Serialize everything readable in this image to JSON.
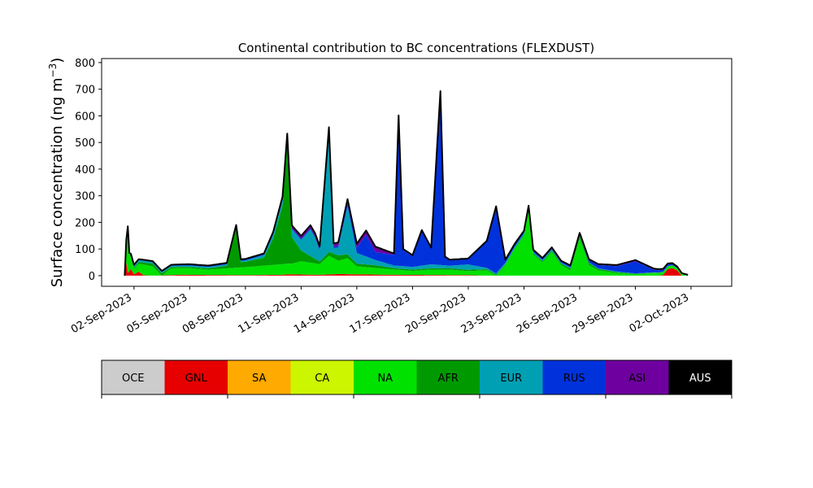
{
  "chart_data": [
    {
      "type": "area",
      "stacked": true,
      "title": "Continental contribution to BC concentrations (FLEXDUST)",
      "ylabel": "Surface concentration (ng m",
      "ylabel_sup": "−3",
      "ylabel_close": ")",
      "xlim": [
        "2023-09-01",
        "2023-10-02"
      ],
      "ylim": [
        -40,
        815
      ],
      "yticks": [
        0,
        100,
        200,
        300,
        400,
        500,
        600,
        700,
        800
      ],
      "xticks": [
        {
          "date": "2023-09-02",
          "label": "02-Sep-2023"
        },
        {
          "date": "2023-09-05",
          "label": "05-Sep-2023"
        },
        {
          "date": "2023-09-08",
          "label": "08-Sep-2023"
        },
        {
          "date": "2023-09-11",
          "label": "11-Sep-2023"
        },
        {
          "date": "2023-09-14",
          "label": "14-Sep-2023"
        },
        {
          "date": "2023-09-17",
          "label": "17-Sep-2023"
        },
        {
          "date": "2023-09-20",
          "label": "20-Sep-2023"
        },
        {
          "date": "2023-09-23",
          "label": "23-Sep-2023"
        },
        {
          "date": "2023-09-26",
          "label": "26-Sep-2023"
        },
        {
          "date": "2023-09-29",
          "label": "29-Sep-2023"
        },
        {
          "date": "2023-10-02",
          "label": "02-Oct-2023"
        }
      ],
      "total_line_color": "#000000",
      "series": [
        {
          "name": "GNL",
          "color": "#e60000",
          "points": [
            [
              "2023-09-01T12:00",
              0
            ],
            [
              "2023-09-01T14:00",
              50
            ],
            [
              "2023-09-01T16:00",
              10
            ],
            [
              "2023-09-01T20:00",
              25
            ],
            [
              "2023-09-02T00:00",
              5
            ],
            [
              "2023-09-02T06:00",
              15
            ],
            [
              "2023-09-02T12:00",
              2
            ],
            [
              "2023-09-03T00:00",
              0
            ],
            [
              "2023-09-04T12:00",
              3
            ],
            [
              "2023-09-08T00:00",
              2
            ],
            [
              "2023-09-10T00:00",
              3
            ],
            [
              "2023-09-10T06:00",
              5
            ],
            [
              "2023-09-12T00:00",
              3
            ],
            [
              "2023-09-13T00:00",
              6
            ],
            [
              "2023-09-14T00:00",
              5
            ],
            [
              "2023-09-16T00:00",
              3
            ],
            [
              "2023-09-20T00:00",
              2
            ],
            [
              "2023-09-21T00:00",
              0
            ],
            [
              "2023-09-30T06:00",
              0
            ],
            [
              "2023-09-30T12:00",
              3
            ],
            [
              "2023-09-30T18:00",
              25
            ],
            [
              "2023-10-01T00:00",
              28
            ],
            [
              "2023-10-01T06:00",
              20
            ],
            [
              "2023-10-01T12:00",
              0
            ],
            [
              "2023-10-01T20:00",
              0
            ]
          ]
        },
        {
          "name": "NA",
          "color": "#00e100",
          "points": [
            [
              "2023-09-01T12:00",
              0
            ],
            [
              "2023-09-01T14:00",
              80
            ],
            [
              "2023-09-01T16:00",
              170
            ],
            [
              "2023-09-01T18:00",
              60
            ],
            [
              "2023-09-02T00:00",
              20
            ],
            [
              "2023-09-02T12:00",
              40
            ],
            [
              "2023-09-03T00:00",
              35
            ],
            [
              "2023-09-03T12:00",
              0
            ],
            [
              "2023-09-04T00:00",
              25
            ],
            [
              "2023-09-05T00:00",
              25
            ],
            [
              "2023-09-06T00:00",
              20
            ],
            [
              "2023-09-07T00:00",
              25
            ],
            [
              "2023-09-08T00:00",
              30
            ],
            [
              "2023-09-09T00:00",
              35
            ],
            [
              "2023-09-10T00:00",
              40
            ],
            [
              "2023-09-10T12:00",
              40
            ],
            [
              "2023-09-11T00:00",
              50
            ],
            [
              "2023-09-12T00:00",
              40
            ],
            [
              "2023-09-12T12:00",
              70
            ],
            [
              "2023-09-13T00:00",
              50
            ],
            [
              "2023-09-13T12:00",
              60
            ],
            [
              "2023-09-14T00:00",
              30
            ],
            [
              "2023-09-15T00:00",
              25
            ],
            [
              "2023-09-16T00:00",
              20
            ],
            [
              "2023-09-17T00:00",
              15
            ],
            [
              "2023-09-18T00:00",
              20
            ],
            [
              "2023-09-19T00:00",
              20
            ],
            [
              "2023-09-20T00:00",
              15
            ],
            [
              "2023-09-21T00:00",
              20
            ],
            [
              "2023-09-21T12:00",
              0
            ],
            [
              "2023-09-22T00:00",
              40
            ],
            [
              "2023-09-22T12:00",
              100
            ],
            [
              "2023-09-23T00:00",
              150
            ],
            [
              "2023-09-23T06:00",
              245
            ],
            [
              "2023-09-23T12:00",
              80
            ],
            [
              "2023-09-24T00:00",
              50
            ],
            [
              "2023-09-24T12:00",
              90
            ],
            [
              "2023-09-25T00:00",
              40
            ],
            [
              "2023-09-25T12:00",
              20
            ],
            [
              "2023-09-26T00:00",
              140
            ],
            [
              "2023-09-26T12:00",
              40
            ],
            [
              "2023-09-27T00:00",
              20
            ],
            [
              "2023-09-28T00:00",
              10
            ],
            [
              "2023-09-29T00:00",
              5
            ],
            [
              "2023-09-30T00:00",
              10
            ],
            [
              "2023-10-01T00:00",
              10
            ],
            [
              "2023-10-01T20:00",
              3
            ]
          ]
        },
        {
          "name": "AFR",
          "color": "#009a00",
          "points": [
            [
              "2023-09-01T12:00",
              0
            ],
            [
              "2023-09-02T00:00",
              5
            ],
            [
              "2023-09-03T00:00",
              10
            ],
            [
              "2023-09-04T00:00",
              5
            ],
            [
              "2023-09-06T00:00",
              5
            ],
            [
              "2023-09-07T00:00",
              10
            ],
            [
              "2023-09-07T12:00",
              150
            ],
            [
              "2023-09-07T18:00",
              20
            ],
            [
              "2023-09-08T00:00",
              20
            ],
            [
              "2023-09-09T00:00",
              30
            ],
            [
              "2023-09-09T12:00",
              100
            ],
            [
              "2023-09-10T00:00",
              220
            ],
            [
              "2023-09-10T06:00",
              450
            ],
            [
              "2023-09-10T12:00",
              100
            ],
            [
              "2023-09-11T00:00",
              40
            ],
            [
              "2023-09-12T00:00",
              10
            ],
            [
              "2023-09-13T00:00",
              20
            ],
            [
              "2023-09-14T00:00",
              10
            ],
            [
              "2023-09-15T00:00",
              10
            ],
            [
              "2023-09-16T00:00",
              5
            ],
            [
              "2023-09-17T00:00",
              5
            ],
            [
              "2023-09-18T00:00",
              5
            ],
            [
              "2023-09-20T00:00",
              5
            ],
            [
              "2023-09-22T00:00",
              3
            ],
            [
              "2023-09-25T00:00",
              5
            ],
            [
              "2023-09-26T00:00",
              10
            ],
            [
              "2023-09-27T00:00",
              5
            ],
            [
              "2023-09-29T00:00",
              2
            ],
            [
              "2023-10-01T20:00",
              0
            ]
          ]
        },
        {
          "name": "EUR",
          "color": "#00a0b4",
          "points": [
            [
              "2023-09-01T12:00",
              0
            ],
            [
              "2023-09-02T00:00",
              10
            ],
            [
              "2023-09-04T00:00",
              5
            ],
            [
              "2023-09-07T00:00",
              5
            ],
            [
              "2023-09-08T00:00",
              5
            ],
            [
              "2023-09-09T00:00",
              10
            ],
            [
              "2023-09-10T00:00",
              20
            ],
            [
              "2023-09-11T00:00",
              40
            ],
            [
              "2023-09-11T12:00",
              100
            ],
            [
              "2023-09-11T18:00",
              80
            ],
            [
              "2023-09-12T00:00",
              40
            ],
            [
              "2023-09-12T12:00",
              450
            ],
            [
              "2023-09-12T18:00",
              20
            ],
            [
              "2023-09-13T00:00",
              30
            ],
            [
              "2023-09-13T12:00",
              180
            ],
            [
              "2023-09-14T00:00",
              40
            ],
            [
              "2023-09-15T00:00",
              20
            ],
            [
              "2023-09-16T00:00",
              10
            ],
            [
              "2023-09-17T00:00",
              10
            ],
            [
              "2023-09-18T00:00",
              15
            ],
            [
              "2023-09-19T00:00",
              10
            ],
            [
              "2023-09-20T00:00",
              20
            ],
            [
              "2023-09-21T00:00",
              5
            ],
            [
              "2023-09-22T00:00",
              5
            ],
            [
              "2023-09-24T00:00",
              5
            ],
            [
              "2023-09-26T00:00",
              3
            ],
            [
              "2023-09-28T00:00",
              2
            ],
            [
              "2023-10-01T20:00",
              0
            ]
          ]
        },
        {
          "name": "RUS",
          "color": "#0032dc",
          "points": [
            [
              "2023-09-01T12:00",
              0
            ],
            [
              "2023-09-05T00:00",
              3
            ],
            [
              "2023-09-10T00:00",
              3
            ],
            [
              "2023-09-13T00:00",
              5
            ],
            [
              "2023-09-14T00:00",
              20
            ],
            [
              "2023-09-14T12:00",
              80
            ],
            [
              "2023-09-15T00:00",
              30
            ],
            [
              "2023-09-16T00:00",
              40
            ],
            [
              "2023-09-16T06:00",
              560
            ],
            [
              "2023-09-16T12:00",
              60
            ],
            [
              "2023-09-17T00:00",
              40
            ],
            [
              "2023-09-17T12:00",
              130
            ],
            [
              "2023-09-18T00:00",
              60
            ],
            [
              "2023-09-18T12:00",
              650
            ],
            [
              "2023-09-18T18:00",
              30
            ],
            [
              "2023-09-19T00:00",
              20
            ],
            [
              "2023-09-20T00:00",
              20
            ],
            [
              "2023-09-20T12:00",
              60
            ],
            [
              "2023-09-21T00:00",
              100
            ],
            [
              "2023-09-21T12:00",
              250
            ],
            [
              "2023-09-22T00:00",
              10
            ],
            [
              "2023-09-24T00:00",
              5
            ],
            [
              "2023-09-26T00:00",
              5
            ],
            [
              "2023-09-28T00:00",
              20
            ],
            [
              "2023-09-29T00:00",
              45
            ],
            [
              "2023-09-30T00:00",
              10
            ],
            [
              "2023-10-01T00:00",
              5
            ],
            [
              "2023-10-01T20:00",
              0
            ]
          ]
        },
        {
          "name": "ASI",
          "color": "#6e00a0",
          "points": [
            [
              "2023-09-01T12:00",
              0
            ],
            [
              "2023-09-05T00:00",
              2
            ],
            [
              "2023-09-09T00:00",
              3
            ],
            [
              "2023-09-10T00:00",
              10
            ],
            [
              "2023-09-14T00:00",
              15
            ],
            [
              "2023-09-15T00:00",
              20
            ],
            [
              "2023-09-16T00:00",
              5
            ],
            [
              "2023-09-18T00:00",
              3
            ],
            [
              "2023-09-21T00:00",
              2
            ],
            [
              "2023-09-25T00:00",
              2
            ],
            [
              "2023-09-29T00:00",
              5
            ],
            [
              "2023-10-01T00:00",
              3
            ],
            [
              "2023-10-01T20:00",
              0
            ]
          ]
        }
      ],
      "legend": {
        "placement": "bottom",
        "entries": [
          {
            "label": "OCE",
            "color": "#cccccc",
            "text_color": "#000000"
          },
          {
            "label": "GNL",
            "color": "#e60000",
            "text_color": "#000000"
          },
          {
            "label": "SA",
            "color": "#ffaa00",
            "text_color": "#000000"
          },
          {
            "label": "CA",
            "color": "#ccf500",
            "text_color": "#000000"
          },
          {
            "label": "NA",
            "color": "#00e100",
            "text_color": "#000000"
          },
          {
            "label": "AFR",
            "color": "#009a00",
            "text_color": "#000000"
          },
          {
            "label": "EUR",
            "color": "#00a0b4",
            "text_color": "#000000"
          },
          {
            "label": "RUS",
            "color": "#0032dc",
            "text_color": "#000000"
          },
          {
            "label": "ASI",
            "color": "#6e00a0",
            "text_color": "#000000"
          },
          {
            "label": "AUS",
            "color": "#000000",
            "text_color": "#ffffff"
          }
        ]
      }
    }
  ]
}
